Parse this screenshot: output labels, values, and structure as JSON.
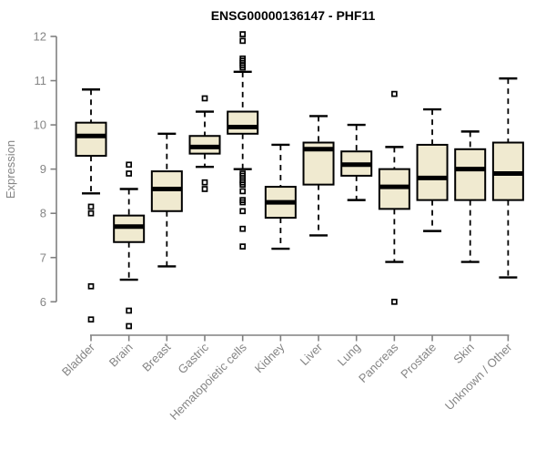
{
  "chart_data": {
    "type": "boxplot",
    "title": "ENSG00000136147 - PHF11",
    "ylabel": "Expression",
    "xlabel": "",
    "ylim": [
      6,
      12
    ],
    "yticks": [
      6,
      7,
      8,
      9,
      10,
      11,
      12
    ],
    "grid": false,
    "legend": false,
    "x_label_rotation_deg": 45,
    "colors": {
      "box_fill": "#f0ead0",
      "box_stroke": "#000000",
      "median": "#000000",
      "whisker": "#000000",
      "outlier": "#000000",
      "axis": "#808080",
      "tick_label": "#858585",
      "title": "#000000",
      "background": "#ffffff"
    },
    "categories": [
      "Bladder",
      "Brain",
      "Breast",
      "Gastric",
      "Hematopoietic cells",
      "Kidney",
      "Liver",
      "Lung",
      "Pancreas",
      "Prostate",
      "Skin",
      "Unknown / Other"
    ],
    "series": [
      {
        "category": "Bladder",
        "whisker_low": 8.45,
        "q1": 9.3,
        "median": 9.75,
        "q3": 10.05,
        "whisker_high": 10.8,
        "outliers": [
          8.15,
          8.0,
          6.35,
          5.6
        ]
      },
      {
        "category": "Brain",
        "whisker_low": 6.5,
        "q1": 7.35,
        "median": 7.7,
        "q3": 7.95,
        "whisker_high": 8.55,
        "outliers": [
          9.1,
          8.9,
          5.8,
          5.45
        ]
      },
      {
        "category": "Breast",
        "whisker_low": 6.8,
        "q1": 8.05,
        "median": 8.55,
        "q3": 8.95,
        "whisker_high": 9.8,
        "outliers": []
      },
      {
        "category": "Gastric",
        "whisker_low": 9.05,
        "q1": 9.35,
        "median": 9.5,
        "q3": 9.75,
        "whisker_high": 10.3,
        "outliers": [
          10.6,
          8.7,
          8.55
        ]
      },
      {
        "category": "Hematopoietic cells",
        "whisker_low": 9.0,
        "q1": 9.8,
        "median": 9.95,
        "q3": 10.3,
        "whisker_high": 11.2,
        "outliers": [
          12.05,
          11.9,
          11.5,
          11.45,
          11.4,
          11.35,
          11.3,
          8.9,
          8.85,
          8.75,
          8.7,
          8.65,
          8.5,
          8.3,
          8.25,
          8.05,
          7.65,
          7.25
        ]
      },
      {
        "category": "Kidney",
        "whisker_low": 7.2,
        "q1": 7.9,
        "median": 8.25,
        "q3": 8.6,
        "whisker_high": 9.55,
        "outliers": []
      },
      {
        "category": "Liver",
        "whisker_low": 7.5,
        "q1": 8.65,
        "median": 9.45,
        "q3": 9.6,
        "whisker_high": 10.2,
        "outliers": []
      },
      {
        "category": "Lung",
        "whisker_low": 8.3,
        "q1": 8.85,
        "median": 9.1,
        "q3": 9.4,
        "whisker_high": 10.0,
        "outliers": []
      },
      {
        "category": "Pancreas",
        "whisker_low": 6.9,
        "q1": 8.1,
        "median": 8.6,
        "q3": 9.0,
        "whisker_high": 9.5,
        "outliers": [
          10.7,
          6.0
        ]
      },
      {
        "category": "Prostate",
        "whisker_low": 7.6,
        "q1": 8.3,
        "median": 8.8,
        "q3": 9.55,
        "whisker_high": 10.35,
        "outliers": []
      },
      {
        "category": "Skin",
        "whisker_low": 6.9,
        "q1": 8.3,
        "median": 9.0,
        "q3": 9.45,
        "whisker_high": 9.85,
        "outliers": []
      },
      {
        "category": "Unknown / Other",
        "whisker_low": 6.55,
        "q1": 8.3,
        "median": 8.9,
        "q3": 9.6,
        "whisker_high": 11.05,
        "outliers": []
      }
    ]
  }
}
